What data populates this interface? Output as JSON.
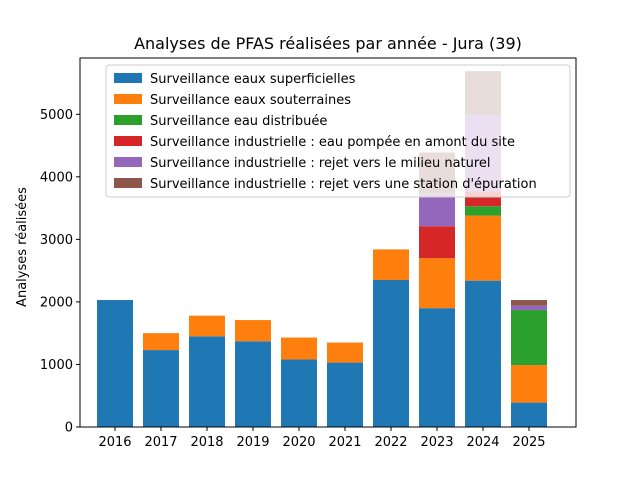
{
  "chart_data": {
    "type": "bar",
    "stacked": true,
    "title": "Analyses de PFAS réalisées par année - Jura (39)",
    "xlabel": "",
    "ylabel": "Analyses réalisées",
    "categories": [
      "2016",
      "2017",
      "2018",
      "2019",
      "2020",
      "2021",
      "2022",
      "2023",
      "2024",
      "2025"
    ],
    "ylim": [
      0,
      5900
    ],
    "yticks": [
      0,
      1000,
      2000,
      3000,
      4000,
      5000
    ],
    "legend_position": "top",
    "series": [
      {
        "name": "Surveillance eaux superficielles",
        "color": "#1f77b4",
        "values": [
          2030,
          1230,
          1450,
          1370,
          1080,
          1030,
          2350,
          1900,
          2340,
          390
        ]
      },
      {
        "name": "Surveillance eaux souterraines",
        "color": "#ff7f0e",
        "values": [
          0,
          270,
          330,
          340,
          350,
          320,
          490,
          800,
          1040,
          600
        ]
      },
      {
        "name": "Surveillance eau distribuée",
        "color": "#2ca02c",
        "values": [
          0,
          0,
          0,
          0,
          0,
          0,
          0,
          0,
          150,
          880
        ]
      },
      {
        "name": "Surveillance industrielle : eau pompée en amont du site",
        "color": "#d62728",
        "values": [
          0,
          0,
          0,
          0,
          0,
          0,
          0,
          510,
          240,
          0
        ]
      },
      {
        "name": "Surveillance industrielle : rejet vers le milieu naturel",
        "color": "#9467bd",
        "values": [
          0,
          0,
          0,
          0,
          0,
          0,
          0,
          520,
          1220,
          70
        ]
      },
      {
        "name": "Surveillance industrielle : rejet vers une station d'épuration",
        "color": "#8c564b",
        "values": [
          0,
          0,
          0,
          0,
          0,
          0,
          0,
          660,
          700,
          90
        ]
      }
    ]
  }
}
